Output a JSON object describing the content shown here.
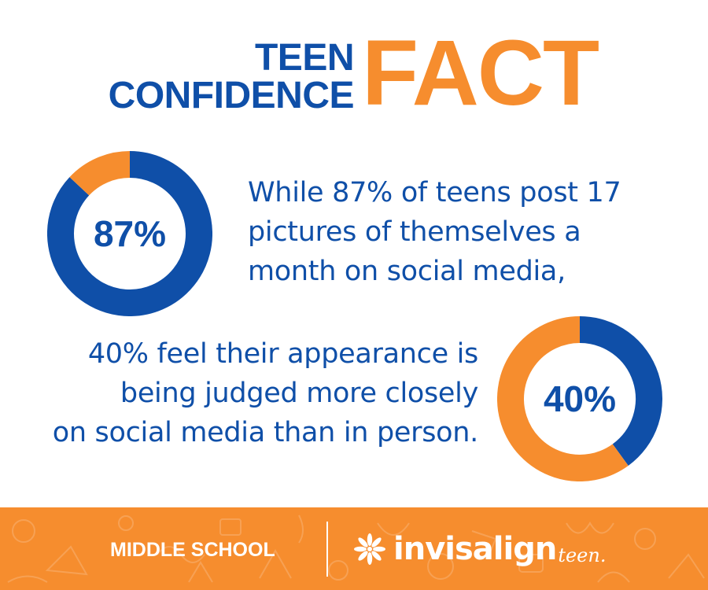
{
  "title": {
    "line1": "TEEN",
    "line2": "CONFIDENCE",
    "emphasis": "FACT"
  },
  "chart_data": [
    {
      "type": "pie",
      "title": "87%",
      "values": [
        87,
        13
      ],
      "colors": [
        "#0F4FA8",
        "#F68D2E"
      ]
    },
    {
      "type": "pie",
      "title": "40%",
      "values": [
        40,
        60
      ],
      "colors": [
        "#0F4FA8",
        "#F68D2E"
      ]
    }
  ],
  "facts": {
    "first": [
      "While 87% of teens post 17",
      "pictures of themselves a",
      "month on social media,"
    ],
    "second": [
      "40% feel their appearance is",
      "being judged more closely",
      "on social media than in person."
    ]
  },
  "footer": {
    "left_label": "MIDDLE SCHOOL",
    "brand": "invisalign",
    "brand_sub": "teen."
  },
  "colors": {
    "blue": "#0F4FA8",
    "orange": "#F68D2E",
    "white": "#FFFFFF"
  }
}
